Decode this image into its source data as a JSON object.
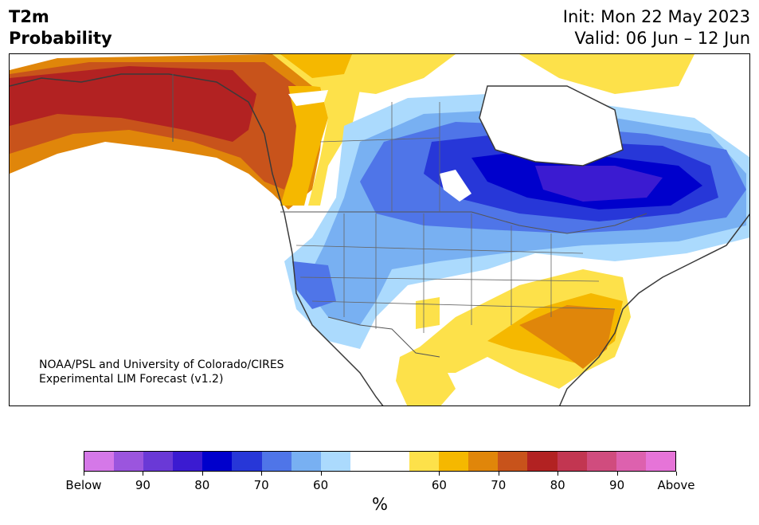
{
  "header": {
    "title_line1": "T2m",
    "title_line2": "Probability",
    "init": "Init: Mon 22 May 2023",
    "valid": "Valid: 06 Jun – 12 Jun"
  },
  "credit": {
    "line1": "NOAA/PSL and University of Colorado/CIRES",
    "line2": "Experimental LIM Forecast (v1.2)"
  },
  "map": {
    "region": "North America",
    "field": "Probability of 2-m temperature below/above normal",
    "colors": {
      "below_90_100": "#d578e8",
      "below_85_90": "#9b55de",
      "below_80_85": "#6a39d6",
      "below_75_80": "#3b1bd1",
      "below_70_75": "#0000cc",
      "below_65_70": "#2737d8",
      "below_60_65": "#4f75e8",
      "below_55_60": "#78b0f2",
      "below_50_55": "#abdafd",
      "neutral": "#ffffff",
      "above_50_55": "#fde14a",
      "above_55_60": "#f5b800",
      "above_60_65": "#e0860a",
      "above_65_70": "#c8531b",
      "above_70_75": "#b22222",
      "above_75_80": "#c23651",
      "above_80_85": "#d04c7e",
      "above_85_90": "#dd61ae",
      "above_90_100": "#e674d8"
    }
  },
  "colorbar": {
    "unit": "%",
    "segments": [
      "#d578e8",
      "#9b55de",
      "#6a39d6",
      "#3b1bd1",
      "#0000cc",
      "#2737d8",
      "#4f75e8",
      "#78b0f2",
      "#abdafd",
      "#ffffff",
      "#ffffff",
      "#fde14a",
      "#f5b800",
      "#e0860a",
      "#c8531b",
      "#b22222",
      "#c23651",
      "#d04c7e",
      "#dd61ae",
      "#e674d8"
    ],
    "tick_labels": [
      "Below",
      "90",
      "80",
      "70",
      "60",
      "60",
      "70",
      "80",
      "90",
      "Above"
    ]
  }
}
